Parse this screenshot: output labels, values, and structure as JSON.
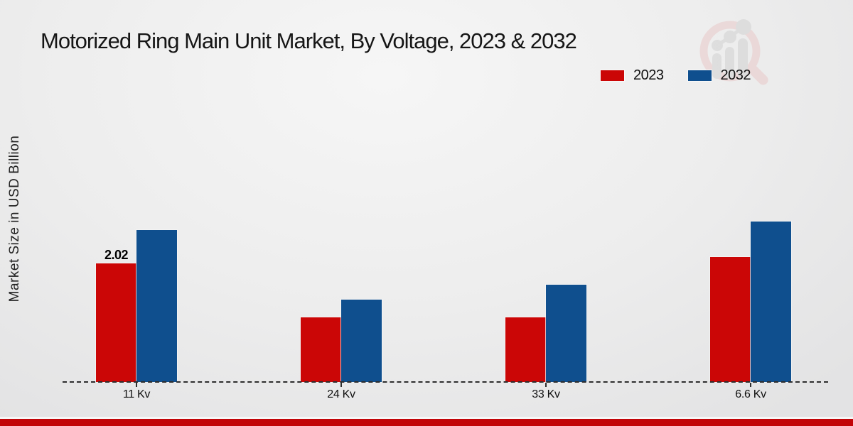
{
  "header": {
    "title": "Motorized Ring Main Unit Market, By Voltage, 2023 & 2032"
  },
  "axes": {
    "y_label": "Market Size in USD Billion"
  },
  "legend": {
    "position": "top-right",
    "items": [
      {
        "label": "2023",
        "color": "#cb0606"
      },
      {
        "label": "2032",
        "color": "#0f4f8e"
      }
    ]
  },
  "watermark": {
    "icon": "magnifier-growth-chart-icon"
  },
  "colors": {
    "series_2023": "#cb0606",
    "series_2032": "#0f4f8e",
    "baseline": "#2e2e2e",
    "footer_strip": "#c20508",
    "background": "#ededed"
  },
  "chart_data": {
    "type": "bar",
    "title": "Motorized Ring Main Unit Market, By Voltage, 2023 & 2032",
    "categories": [
      "11 Kv",
      "24 Kv",
      "33 Kv",
      "6.6 Kv"
    ],
    "series": [
      {
        "name": "2023",
        "color": "#cb0606",
        "values": [
          2.02,
          1.1,
          1.1,
          2.13
        ]
      },
      {
        "name": "2032",
        "color": "#0f4f8e",
        "values": [
          2.58,
          1.4,
          1.65,
          2.73
        ]
      }
    ],
    "value_labels": [
      {
        "series_index": 0,
        "category_index": 0,
        "text": "2.02"
      }
    ],
    "xlabel": "",
    "ylabel": "Market Size in USD Billion",
    "ylim": [
      0,
      3
    ],
    "grid": false,
    "y_ticks_visible": false,
    "baseline_style": "dashed",
    "legend_position": "top-right"
  }
}
